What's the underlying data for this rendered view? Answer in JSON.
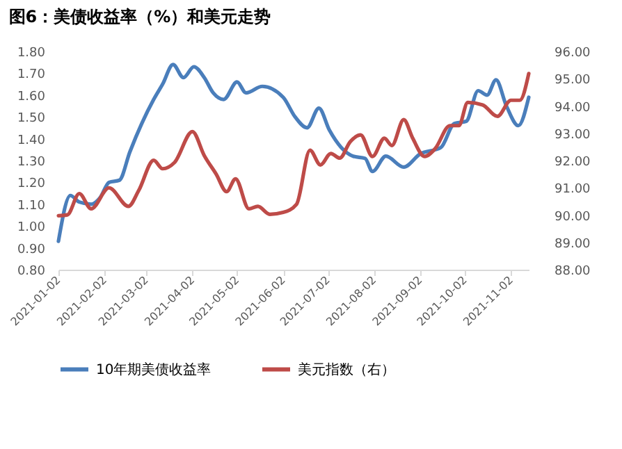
{
  "chart_data": {
    "type": "line",
    "title": "图6：美债收益率（%）和美元走势",
    "xlim": [
      "2021-01-02",
      "2021-11-14"
    ],
    "xticks": [
      "2021-01-02",
      "2021-02-02",
      "2021-03-02",
      "2021-04-02",
      "2021-05-02",
      "2021-06-02",
      "2021-07-02",
      "2021-08-02",
      "2021-09-02",
      "2021-10-02",
      "2021-11-02"
    ],
    "ylim": [
      0.8,
      1.8
    ],
    "yticks": [
      {
        "value": 0.8,
        "label": "0.80"
      },
      {
        "value": 0.9,
        "label": "0.90"
      },
      {
        "value": 1.0,
        "label": "1.00"
      },
      {
        "value": 1.1,
        "label": "1.10"
      },
      {
        "value": 1.2,
        "label": "1.20"
      },
      {
        "value": 1.3,
        "label": "1.30"
      },
      {
        "value": 1.4,
        "label": "1.40"
      },
      {
        "value": 1.5,
        "label": "1.50"
      },
      {
        "value": 1.6,
        "label": "1.60"
      },
      {
        "value": 1.7,
        "label": "1.70"
      },
      {
        "value": 1.8,
        "label": "1.80"
      }
    ],
    "y2lim": [
      88,
      96
    ],
    "y2ticks": [
      {
        "value": 88,
        "label": "88.00"
      },
      {
        "value": 89,
        "label": "89.00"
      },
      {
        "value": 90,
        "label": "90.00"
      },
      {
        "value": 91,
        "label": "91.00"
      },
      {
        "value": 92,
        "label": "92.00"
      },
      {
        "value": 93,
        "label": "93.00"
      },
      {
        "value": 94,
        "label": "94.00"
      },
      {
        "value": 95,
        "label": "95.00"
      },
      {
        "value": 96,
        "label": "96.00"
      }
    ],
    "grid": false,
    "legend": "bottom",
    "marker": "none",
    "line_style": "solid",
    "series": [
      {
        "name": "10年期美债收益率",
        "color": "#4a7ebb",
        "axis": "y",
        "x": [
          "2021-01-02",
          "2021-01-10",
          "2021-01-16",
          "2021-01-24",
          "2021-01-30",
          "2021-02-05",
          "2021-02-12",
          "2021-02-19",
          "2021-02-27",
          "2021-03-07",
          "2021-03-13",
          "2021-03-20",
          "2021-03-27",
          "2021-04-03",
          "2021-04-10",
          "2021-04-16",
          "2021-04-23",
          "2021-05-02",
          "2021-05-08",
          "2021-05-19",
          "2021-06-02",
          "2021-06-10",
          "2021-06-18",
          "2021-06-26",
          "2021-07-03",
          "2021-07-11",
          "2021-07-19",
          "2021-07-27",
          "2021-08-01",
          "2021-08-10",
          "2021-08-22",
          "2021-09-02",
          "2021-09-16",
          "2021-09-25",
          "2021-10-03",
          "2021-10-11",
          "2021-10-17",
          "2021-10-23",
          "2021-10-30",
          "2021-11-07",
          "2021-11-14"
        ],
        "values": [
          0.93,
          1.14,
          1.11,
          1.1,
          1.13,
          1.2,
          1.21,
          1.34,
          1.47,
          1.58,
          1.65,
          1.74,
          1.68,
          1.73,
          1.68,
          1.61,
          1.58,
          1.66,
          1.61,
          1.64,
          1.59,
          1.5,
          1.45,
          1.54,
          1.44,
          1.36,
          1.32,
          1.31,
          1.25,
          1.32,
          1.27,
          1.33,
          1.36,
          1.47,
          1.48,
          1.62,
          1.6,
          1.67,
          1.55,
          1.46,
          1.59
        ]
      },
      {
        "name": "美元指数（右）",
        "color": "#be4b48",
        "axis": "y2",
        "x": [
          "2021-01-02",
          "2021-01-08",
          "2021-01-16",
          "2021-01-24",
          "2021-02-05",
          "2021-02-18",
          "2021-02-25",
          "2021-03-07",
          "2021-03-13",
          "2021-03-21",
          "2021-04-02",
          "2021-04-10",
          "2021-04-18",
          "2021-04-25",
          "2021-05-01",
          "2021-05-10",
          "2021-05-16",
          "2021-05-24",
          "2021-06-02",
          "2021-06-11",
          "2021-06-20",
          "2021-06-27",
          "2021-07-04",
          "2021-07-10",
          "2021-07-17",
          "2021-07-24",
          "2021-08-01",
          "2021-08-09",
          "2021-08-14",
          "2021-08-22",
          "2021-08-28",
          "2021-09-05",
          "2021-09-12",
          "2021-09-22",
          "2021-09-28",
          "2021-10-04",
          "2021-10-14",
          "2021-10-24",
          "2021-11-02",
          "2021-11-08",
          "2021-11-14"
        ],
        "values": [
          89.98,
          90.01,
          90.79,
          90.23,
          91.0,
          90.32,
          90.91,
          92.01,
          91.7,
          91.93,
          93.06,
          92.18,
          91.5,
          90.86,
          91.33,
          90.23,
          90.32,
          90.03,
          90.1,
          90.4,
          92.38,
          91.84,
          92.26,
          92.09,
          92.69,
          92.94,
          92.15,
          92.82,
          92.55,
          93.5,
          92.82,
          92.15,
          92.43,
          93.28,
          93.28,
          94.13,
          94.04,
          93.62,
          94.21,
          94.21,
          95.19
        ]
      }
    ]
  }
}
